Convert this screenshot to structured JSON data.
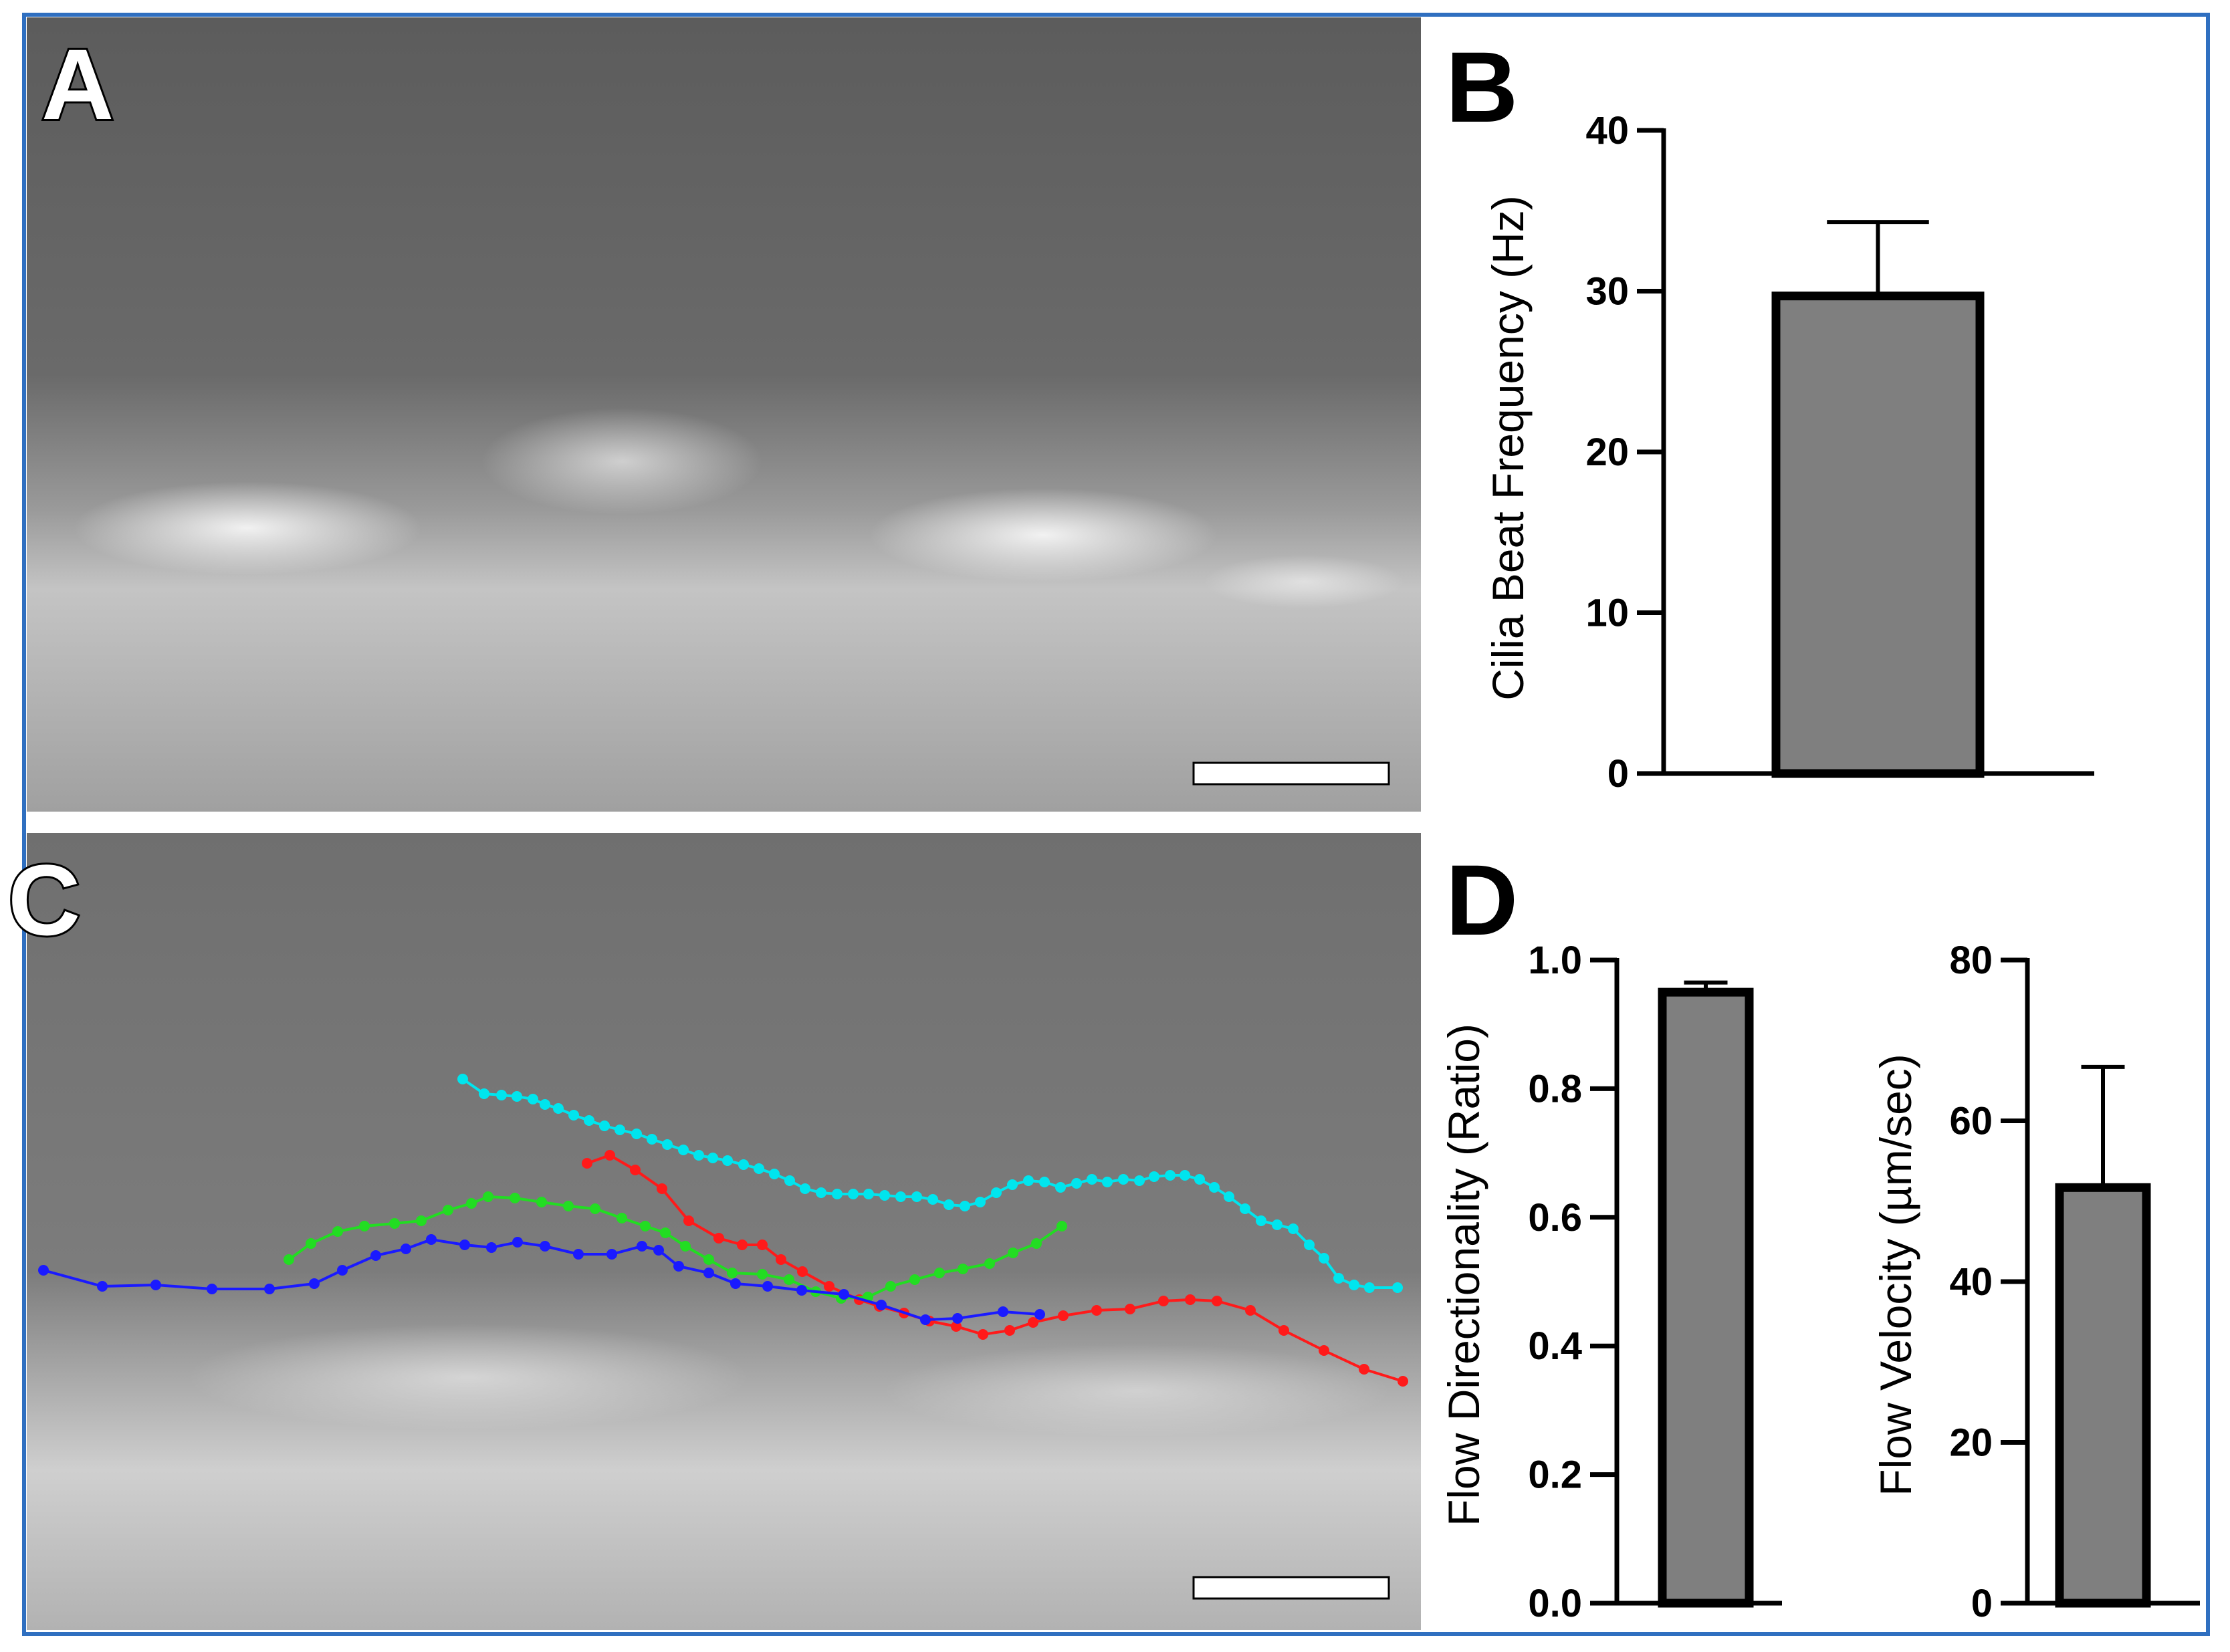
{
  "panels": {
    "A": {
      "letter": "A"
    },
    "B": {
      "letter": "B"
    },
    "C": {
      "letter": "C"
    },
    "D": {
      "letter": "D"
    }
  },
  "colors": {
    "frame": "#2f6fc0",
    "bar_fill": "#7f7f7f",
    "track_cyan": "#00e5ee",
    "track_red": "#ff1a1a",
    "track_green": "#22dd22",
    "track_blue": "#1a1aff"
  },
  "tracks": [
    {
      "color": "cyan",
      "points": [
        [
          692,
          1614
        ],
        [
          724,
          1636
        ],
        [
          750,
          1638
        ],
        [
          773,
          1640
        ],
        [
          797,
          1644
        ],
        [
          815,
          1652
        ],
        [
          835,
          1658
        ],
        [
          858,
          1668
        ],
        [
          881,
          1676
        ],
        [
          904,
          1684
        ],
        [
          927,
          1690
        ],
        [
          952,
          1696
        ],
        [
          975,
          1704
        ],
        [
          998,
          1712
        ],
        [
          1022,
          1720
        ],
        [
          1045,
          1728
        ],
        [
          1066,
          1732
        ],
        [
          1088,
          1736
        ],
        [
          1112,
          1742
        ],
        [
          1135,
          1748
        ],
        [
          1158,
          1756
        ],
        [
          1181,
          1766
        ],
        [
          1204,
          1778
        ],
        [
          1228,
          1784
        ],
        [
          1252,
          1786
        ],
        [
          1276,
          1786
        ],
        [
          1299,
          1786
        ],
        [
          1323,
          1788
        ],
        [
          1347,
          1790
        ],
        [
          1371,
          1790
        ],
        [
          1395,
          1794
        ],
        [
          1419,
          1802
        ],
        [
          1443,
          1804
        ],
        [
          1466,
          1798
        ],
        [
          1490,
          1784
        ],
        [
          1514,
          1772
        ],
        [
          1538,
          1766
        ],
        [
          1562,
          1768
        ],
        [
          1586,
          1776
        ],
        [
          1610,
          1770
        ],
        [
          1633,
          1764
        ],
        [
          1656,
          1768
        ],
        [
          1680,
          1764
        ],
        [
          1704,
          1766
        ],
        [
          1726,
          1760
        ],
        [
          1750,
          1758
        ],
        [
          1772,
          1758
        ],
        [
          1794,
          1764
        ],
        [
          1816,
          1776
        ],
        [
          1838,
          1790
        ],
        [
          1862,
          1808
        ],
        [
          1886,
          1826
        ],
        [
          1910,
          1832
        ],
        [
          1934,
          1838
        ],
        [
          1958,
          1862
        ],
        [
          1980,
          1882
        ],
        [
          2002,
          1912
        ],
        [
          2025,
          1922
        ],
        [
          2048,
          1926
        ],
        [
          2090,
          1926
        ]
      ]
    },
    {
      "color": "red",
      "points": [
        [
          878,
          1740
        ],
        [
          912,
          1728
        ],
        [
          950,
          1750
        ],
        [
          990,
          1778
        ],
        [
          1030,
          1826
        ],
        [
          1075,
          1852
        ],
        [
          1110,
          1862
        ],
        [
          1140,
          1862
        ],
        [
          1168,
          1884
        ],
        [
          1200,
          1902
        ],
        [
          1240,
          1924
        ],
        [
          1285,
          1944
        ],
        [
          1315,
          1954
        ],
        [
          1352,
          1964
        ],
        [
          1390,
          1976
        ],
        [
          1430,
          1984
        ],
        [
          1470,
          1996
        ],
        [
          1510,
          1990
        ],
        [
          1545,
          1978
        ],
        [
          1590,
          1968
        ],
        [
          1640,
          1960
        ],
        [
          1690,
          1958
        ],
        [
          1740,
          1946
        ],
        [
          1780,
          1944
        ],
        [
          1820,
          1946
        ],
        [
          1870,
          1960
        ],
        [
          1920,
          1990
        ],
        [
          1980,
          2020
        ],
        [
          2040,
          2048
        ],
        [
          2098,
          2066
        ]
      ]
    },
    {
      "color": "green",
      "points": [
        [
          432,
          1884
        ],
        [
          465,
          1860
        ],
        [
          505,
          1842
        ],
        [
          545,
          1834
        ],
        [
          590,
          1830
        ],
        [
          630,
          1826
        ],
        [
          670,
          1810
        ],
        [
          705,
          1800
        ],
        [
          730,
          1790
        ],
        [
          770,
          1792
        ],
        [
          810,
          1798
        ],
        [
          850,
          1804
        ],
        [
          890,
          1808
        ],
        [
          930,
          1822
        ],
        [
          965,
          1834
        ],
        [
          995,
          1844
        ],
        [
          1025,
          1864
        ],
        [
          1060,
          1884
        ],
        [
          1095,
          1904
        ],
        [
          1140,
          1906
        ],
        [
          1180,
          1914
        ],
        [
          1220,
          1932
        ],
        [
          1258,
          1942
        ],
        [
          1298,
          1940
        ],
        [
          1332,
          1924
        ],
        [
          1368,
          1914
        ],
        [
          1405,
          1904
        ],
        [
          1440,
          1898
        ],
        [
          1480,
          1890
        ],
        [
          1515,
          1874
        ],
        [
          1550,
          1860
        ],
        [
          1588,
          1834
        ]
      ]
    },
    {
      "color": "blue",
      "points": [
        [
          65,
          1900
        ],
        [
          153,
          1924
        ],
        [
          233,
          1922
        ],
        [
          317,
          1928
        ],
        [
          403,
          1928
        ],
        [
          470,
          1920
        ],
        [
          512,
          1900
        ],
        [
          562,
          1878
        ],
        [
          607,
          1868
        ],
        [
          645,
          1854
        ],
        [
          695,
          1862
        ],
        [
          735,
          1866
        ],
        [
          774,
          1858
        ],
        [
          815,
          1864
        ],
        [
          865,
          1876
        ],
        [
          915,
          1876
        ],
        [
          960,
          1864
        ],
        [
          985,
          1870
        ],
        [
          1015,
          1894
        ],
        [
          1060,
          1904
        ],
        [
          1100,
          1920
        ],
        [
          1148,
          1924
        ],
        [
          1199,
          1930
        ],
        [
          1262,
          1936
        ],
        [
          1318,
          1952
        ],
        [
          1384,
          1974
        ],
        [
          1432,
          1972
        ],
        [
          1500,
          1962
        ],
        [
          1555,
          1966
        ]
      ]
    }
  ],
  "chart_data": [
    {
      "panel": "B",
      "type": "bar",
      "categories": [
        ""
      ],
      "values": [
        29.7
      ],
      "error": [
        4.6
      ],
      "ylabel": "Cilia Beat Frequency (Hz)",
      "xlabel": "",
      "ylim": [
        0,
        40
      ],
      "yticks": [
        "0",
        "10",
        "20",
        "30",
        "40"
      ]
    },
    {
      "panel": "D",
      "type": "bar",
      "categories": [
        ""
      ],
      "values": [
        0.95
      ],
      "error": [
        0.015
      ],
      "ylabel": "Flow Directionality (Ratio)",
      "xlabel": "",
      "ylim": [
        0,
        1.0
      ],
      "yticks": [
        "0.0",
        "0.2",
        "0.4",
        "0.6",
        "0.8",
        "1.0"
      ]
    },
    {
      "panel": "D",
      "type": "bar",
      "categories": [
        ""
      ],
      "values": [
        51.7
      ],
      "error": [
        15.0
      ],
      "ylabel": "Flow Velocity (µm/sec)",
      "xlabel": "",
      "ylim": [
        0,
        80
      ],
      "yticks": [
        "0",
        "20",
        "40",
        "60",
        "80"
      ]
    }
  ]
}
